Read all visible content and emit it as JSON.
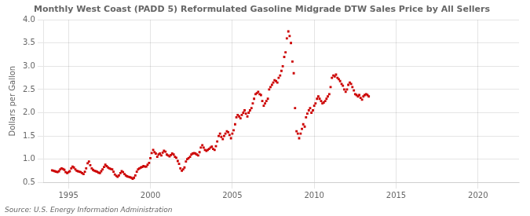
{
  "chart_data": {
    "type": "scatter",
    "title": "Monthly West Coast (PADD 5) Reformulated Gasoline Midgrade DTW Sales Price by All Sellers",
    "ylabel": "Dollars per Gallon",
    "annotations": [
      "Source: U.S. Energy Information Administration"
    ],
    "color": "#CC0000",
    "marker": "square",
    "grid": true,
    "xlim": [
      1993.5,
      2022.5
    ],
    "ylim": [
      0.5,
      4.0
    ],
    "xticks": [
      1995,
      2000,
      2005,
      2010,
      2015,
      2020
    ],
    "yticks": [
      0.5,
      {
        "value": 1.0,
        "label": "1.0"
      },
      1.5,
      {
        "value": 2.0,
        "label": "2.0"
      },
      2.5,
      {
        "value": 3.0,
        "label": "3.0"
      },
      3.5,
      {
        "value": 4.0,
        "label": "4.0"
      }
    ],
    "x": [
      1994.0,
      1994.08,
      1994.17,
      1994.25,
      1994.33,
      1994.42,
      1994.5,
      1994.58,
      1994.67,
      1994.75,
      1994.83,
      1994.92,
      1995.0,
      1995.08,
      1995.17,
      1995.25,
      1995.33,
      1995.42,
      1995.5,
      1995.58,
      1995.67,
      1995.75,
      1995.83,
      1995.92,
      1996.0,
      1996.08,
      1996.17,
      1996.25,
      1996.33,
      1996.42,
      1996.5,
      1996.58,
      1996.67,
      1996.75,
      1996.83,
      1996.92,
      1997.0,
      1997.08,
      1997.17,
      1997.25,
      1997.33,
      1997.42,
      1997.5,
      1997.58,
      1997.67,
      1997.75,
      1997.83,
      1997.92,
      1998.0,
      1998.08,
      1998.17,
      1998.25,
      1998.33,
      1998.42,
      1998.5,
      1998.58,
      1998.67,
      1998.75,
      1998.83,
      1998.92,
      1999.0,
      1999.08,
      1999.17,
      1999.25,
      1999.33,
      1999.42,
      1999.5,
      1999.58,
      1999.67,
      1999.75,
      1999.83,
      1999.92,
      2000.0,
      2000.08,
      2000.17,
      2000.25,
      2000.33,
      2000.42,
      2000.5,
      2000.58,
      2000.67,
      2000.75,
      2000.83,
      2000.92,
      2001.0,
      2001.08,
      2001.17,
      2001.25,
      2001.33,
      2001.42,
      2001.5,
      2001.58,
      2001.67,
      2001.75,
      2001.83,
      2001.92,
      2002.0,
      2002.08,
      2002.17,
      2002.25,
      2002.33,
      2002.42,
      2002.5,
      2002.58,
      2002.67,
      2002.75,
      2002.83,
      2002.92,
      2003.0,
      2003.08,
      2003.17,
      2003.25,
      2003.33,
      2003.42,
      2003.5,
      2003.58,
      2003.67,
      2003.75,
      2003.83,
      2003.92,
      2004.0,
      2004.08,
      2004.17,
      2004.25,
      2004.33,
      2004.42,
      2004.5,
      2004.58,
      2004.67,
      2004.75,
      2004.83,
      2004.92,
      2005.0,
      2005.08,
      2005.17,
      2005.25,
      2005.33,
      2005.42,
      2005.5,
      2005.58,
      2005.67,
      2005.75,
      2005.83,
      2005.92,
      2006.0,
      2006.08,
      2006.17,
      2006.25,
      2006.33,
      2006.42,
      2006.5,
      2006.58,
      2006.67,
      2006.75,
      2006.83,
      2006.92,
      2007.0,
      2007.08,
      2007.17,
      2007.25,
      2007.33,
      2007.42,
      2007.5,
      2007.58,
      2007.67,
      2007.75,
      2007.83,
      2007.92,
      2008.0,
      2008.08,
      2008.17,
      2008.25,
      2008.33,
      2008.42,
      2008.5,
      2008.58,
      2008.67,
      2008.75,
      2008.83,
      2008.92,
      2009.0,
      2009.08,
      2009.17,
      2009.25,
      2009.33,
      2009.42,
      2009.5,
      2009.58,
      2009.67,
      2009.75,
      2009.83,
      2009.92,
      2010.0,
      2010.08,
      2010.17,
      2010.25,
      2010.33,
      2010.42,
      2010.5,
      2010.58,
      2010.67,
      2010.75,
      2010.83,
      2010.92,
      2011.0,
      2011.08,
      2011.17,
      2011.25,
      2011.33,
      2011.42,
      2011.5,
      2011.58,
      2011.67,
      2011.75,
      2011.83,
      2011.92,
      2012.0,
      2012.08,
      2012.17,
      2012.25,
      2012.33,
      2012.42,
      2012.5,
      2012.58,
      2012.67,
      2012.75,
      2012.83,
      2012.92,
      2013.0,
      2013.08,
      2013.17,
      2013.25,
      2013.33
    ],
    "values": [
      0.76,
      0.75,
      0.74,
      0.73,
      0.72,
      0.74,
      0.78,
      0.8,
      0.79,
      0.77,
      0.72,
      0.7,
      0.72,
      0.74,
      0.8,
      0.84,
      0.82,
      0.78,
      0.75,
      0.74,
      0.73,
      0.72,
      0.7,
      0.68,
      0.73,
      0.8,
      0.91,
      0.95,
      0.87,
      0.8,
      0.77,
      0.75,
      0.74,
      0.73,
      0.71,
      0.7,
      0.74,
      0.78,
      0.83,
      0.88,
      0.85,
      0.82,
      0.8,
      0.79,
      0.78,
      0.73,
      0.67,
      0.64,
      0.62,
      0.65,
      0.7,
      0.74,
      0.72,
      0.68,
      0.65,
      0.63,
      0.62,
      0.61,
      0.6,
      0.58,
      0.6,
      0.65,
      0.73,
      0.78,
      0.8,
      0.82,
      0.83,
      0.85,
      0.84,
      0.84,
      0.88,
      0.92,
      1.02,
      1.13,
      1.2,
      1.15,
      1.12,
      1.05,
      1.1,
      1.12,
      1.08,
      1.14,
      1.18,
      1.16,
      1.1,
      1.08,
      1.06,
      1.09,
      1.12,
      1.1,
      1.05,
      1.03,
      0.96,
      0.9,
      0.8,
      0.75,
      0.78,
      0.82,
      0.95,
      1.0,
      1.02,
      1.05,
      1.1,
      1.12,
      1.13,
      1.12,
      1.1,
      1.08,
      1.15,
      1.25,
      1.3,
      1.25,
      1.2,
      1.18,
      1.2,
      1.22,
      1.25,
      1.27,
      1.22,
      1.2,
      1.28,
      1.38,
      1.5,
      1.55,
      1.48,
      1.43,
      1.5,
      1.55,
      1.6,
      1.58,
      1.52,
      1.45,
      1.55,
      1.62,
      1.75,
      1.9,
      1.95,
      1.92,
      1.88,
      1.95,
      2.0,
      2.05,
      1.98,
      1.92,
      2.0,
      2.05,
      2.1,
      2.2,
      2.3,
      2.4,
      2.42,
      2.45,
      2.4,
      2.38,
      2.25,
      2.15,
      2.2,
      2.25,
      2.3,
      2.5,
      2.55,
      2.6,
      2.65,
      2.7,
      2.68,
      2.65,
      2.75,
      2.8,
      2.9,
      3.0,
      3.2,
      3.3,
      3.6,
      3.75,
      3.65,
      3.5,
      3.1,
      2.85,
      2.1,
      1.6,
      1.55,
      1.45,
      1.55,
      1.65,
      1.75,
      1.7,
      1.9,
      1.98,
      2.05,
      2.1,
      2.0,
      2.05,
      2.15,
      2.2,
      2.3,
      2.35,
      2.3,
      2.25,
      2.2,
      2.22,
      2.25,
      2.3,
      2.35,
      2.4,
      2.55,
      2.75,
      2.8,
      2.78,
      2.82,
      2.75,
      2.72,
      2.68,
      2.62,
      2.58,
      2.5,
      2.45,
      2.5,
      2.6,
      2.65,
      2.62,
      2.55,
      2.48,
      2.4,
      2.38,
      2.35,
      2.38,
      2.32,
      2.28,
      2.35,
      2.38,
      2.4,
      2.38,
      2.35
    ]
  }
}
